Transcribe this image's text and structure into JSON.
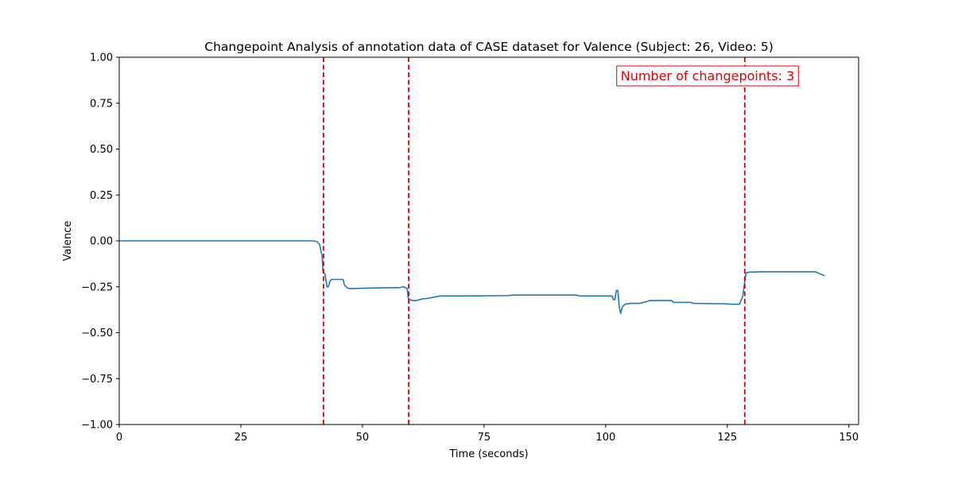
{
  "chart_data": {
    "type": "line",
    "title": "Changepoint Analysis of annotation data of CASE dataset for Valence (Subject: 26, Video: 5)",
    "xlabel": "Time (seconds)",
    "ylabel": "Valence",
    "xlim": [
      0,
      152
    ],
    "ylim": [
      -1.0,
      1.0
    ],
    "xticks": [
      0,
      25,
      50,
      75,
      100,
      125,
      150
    ],
    "xtick_labels": [
      "0",
      "25",
      "50",
      "75",
      "100",
      "125",
      "150"
    ],
    "yticks": [
      1.0,
      0.75,
      0.5,
      0.25,
      0.0,
      -0.25,
      -0.5,
      -0.75,
      -1.0
    ],
    "ytick_labels": [
      "1.00",
      "0.75",
      "0.50",
      "0.25",
      "0.00",
      "−0.25",
      "−0.50",
      "−0.75",
      "−1.00"
    ],
    "grid": false,
    "series": [
      {
        "color": "#1f77b4",
        "x": [
          0,
          40,
          40.7,
          41.2,
          41.5,
          41.7,
          41.9,
          42.3,
          42.7,
          43.0,
          43.3,
          43.6,
          44.0,
          46.0,
          46.3,
          46.8,
          47.3,
          50.0,
          55.0,
          57.5,
          58.5,
          59.2,
          59.4,
          59.7,
          60.3,
          61.0,
          62.5,
          63.0,
          65.0,
          66.0,
          67.0,
          70.0,
          80.0,
          81.0,
          85.0,
          90.0,
          94.0,
          94.5,
          98.0,
          100.0,
          101.3,
          101.6,
          101.9,
          102.2,
          102.5,
          102.8,
          103.1,
          103.4,
          104.0,
          105.0,
          107.0,
          108.5,
          109.0,
          112.0,
          113.5,
          114.0,
          116.0,
          117.5,
          118.0,
          122.0,
          123.5,
          124.0,
          126.0,
          127.5,
          128.2,
          128.7,
          128.9,
          129.5,
          132.0,
          140.0,
          143.0,
          143.7,
          145.0
        ],
        "y": [
          0.0,
          0.0,
          -0.005,
          -0.02,
          -0.06,
          -0.08,
          -0.17,
          -0.18,
          -0.25,
          -0.25,
          -0.22,
          -0.21,
          -0.21,
          -0.21,
          -0.24,
          -0.255,
          -0.26,
          -0.258,
          -0.255,
          -0.255,
          -0.25,
          -0.26,
          -0.31,
          -0.32,
          -0.325,
          -0.325,
          -0.315,
          -0.315,
          -0.305,
          -0.3,
          -0.3,
          -0.3,
          -0.298,
          -0.295,
          -0.295,
          -0.295,
          -0.295,
          -0.3,
          -0.3,
          -0.3,
          -0.3,
          -0.32,
          -0.32,
          -0.27,
          -0.27,
          -0.36,
          -0.395,
          -0.36,
          -0.345,
          -0.34,
          -0.34,
          -0.33,
          -0.325,
          -0.325,
          -0.325,
          -0.335,
          -0.335,
          -0.335,
          -0.34,
          -0.342,
          -0.342,
          -0.342,
          -0.345,
          -0.345,
          -0.3,
          -0.2,
          -0.175,
          -0.17,
          -0.168,
          -0.168,
          -0.168,
          -0.175,
          -0.19
        ]
      }
    ],
    "changepoints": [
      42.0,
      59.5,
      128.6
    ],
    "changepoint_color": "#e00000",
    "annotation": {
      "text": "Number of changepoints: 3",
      "color": "#e00000",
      "placement": "top-right"
    }
  }
}
